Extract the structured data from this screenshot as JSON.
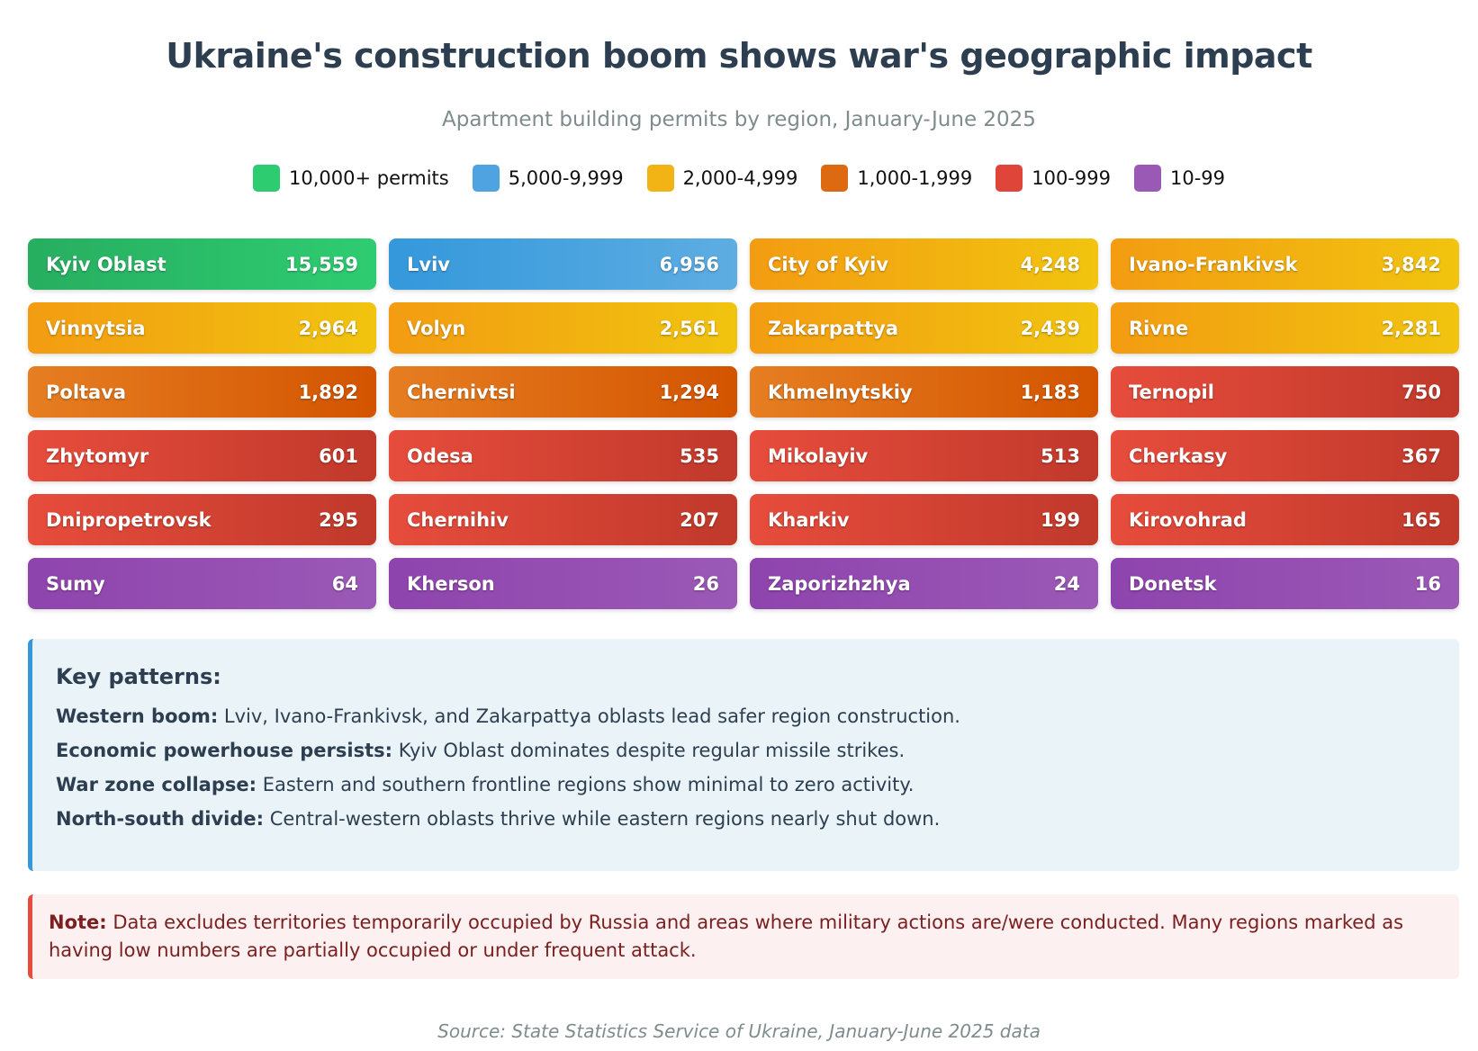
{
  "chart_data": {
    "type": "table",
    "title": "Ukraine's construction boom shows war's geographic impact",
    "subtitle": "Apartment building permits by region, January-June 2025",
    "legend": [
      {
        "label": "10,000+ permits",
        "color": "#2ecc71"
      },
      {
        "label": "5,000-9,999",
        "color": "#4ea3e0"
      },
      {
        "label": "2,000-4,999",
        "color": "#f1b414"
      },
      {
        "label": "1,000-1,999",
        "color": "#dd6a10"
      },
      {
        "label": "100-999",
        "color": "#e0453a"
      },
      {
        "label": "10-99",
        "color": "#9b59b6"
      }
    ],
    "regions": [
      {
        "name": "Kyiv Oblast",
        "value": 15559,
        "display": "15,559",
        "tier": "green"
      },
      {
        "name": "Lviv",
        "value": 6956,
        "display": "6,956",
        "tier": "blue"
      },
      {
        "name": "City of Kyiv",
        "value": 4248,
        "display": "4,248",
        "tier": "yellow"
      },
      {
        "name": "Ivano-Frankivsk",
        "value": 3842,
        "display": "3,842",
        "tier": "yellow"
      },
      {
        "name": "Vinnytsia",
        "value": 2964,
        "display": "2,964",
        "tier": "yellow"
      },
      {
        "name": "Volyn",
        "value": 2561,
        "display": "2,561",
        "tier": "yellow"
      },
      {
        "name": "Zakarpattya",
        "value": 2439,
        "display": "2,439",
        "tier": "yellow"
      },
      {
        "name": "Rivne",
        "value": 2281,
        "display": "2,281",
        "tier": "yellow"
      },
      {
        "name": "Poltava",
        "value": 1892,
        "display": "1,892",
        "tier": "orange"
      },
      {
        "name": "Chernivtsi",
        "value": 1294,
        "display": "1,294",
        "tier": "orange"
      },
      {
        "name": "Khmelnytskiy",
        "value": 1183,
        "display": "1,183",
        "tier": "orange"
      },
      {
        "name": "Ternopil",
        "value": 750,
        "display": "750",
        "tier": "red"
      },
      {
        "name": "Zhytomyr",
        "value": 601,
        "display": "601",
        "tier": "red"
      },
      {
        "name": "Odesa",
        "value": 535,
        "display": "535",
        "tier": "red"
      },
      {
        "name": "Mikolayiv",
        "value": 513,
        "display": "513",
        "tier": "red"
      },
      {
        "name": "Cherkasy",
        "value": 367,
        "display": "367",
        "tier": "red"
      },
      {
        "name": "Dnipropetrovsk",
        "value": 295,
        "display": "295",
        "tier": "red"
      },
      {
        "name": "Chernihiv",
        "value": 207,
        "display": "207",
        "tier": "red"
      },
      {
        "name": "Kharkiv",
        "value": 199,
        "display": "199",
        "tier": "red"
      },
      {
        "name": "Kirovohrad",
        "value": 165,
        "display": "165",
        "tier": "red"
      },
      {
        "name": "Sumy",
        "value": 64,
        "display": "64",
        "tier": "purple"
      },
      {
        "name": "Kherson",
        "value": 26,
        "display": "26",
        "tier": "purple"
      },
      {
        "name": "Zaporizhzhya",
        "value": 24,
        "display": "24",
        "tier": "purple"
      },
      {
        "name": "Donetsk",
        "value": 16,
        "display": "16",
        "tier": "purple"
      }
    ]
  },
  "patterns": {
    "title": "Key patterns:",
    "items": [
      {
        "label": "Western boom:",
        "text": " Lviv, Ivano-Frankivsk, and Zakarpattya oblasts lead safer region construction."
      },
      {
        "label": "Economic powerhouse persists:",
        "text": " Kyiv Oblast dominates despite regular missile strikes."
      },
      {
        "label": "War zone collapse:",
        "text": " Eastern and southern frontline regions show minimal to zero activity."
      },
      {
        "label": "North-south divide:",
        "text": " Central-western oblasts thrive while eastern regions nearly shut down."
      }
    ]
  },
  "note": {
    "label": "Note:",
    "text": " Data excludes territories temporarily occupied by Russia and areas where military actions are/were conducted. Many regions marked as having low numbers are partially occupied or under frequent attack."
  },
  "source": "Source: State Statistics Service of Ukraine, January-June 2025 data"
}
